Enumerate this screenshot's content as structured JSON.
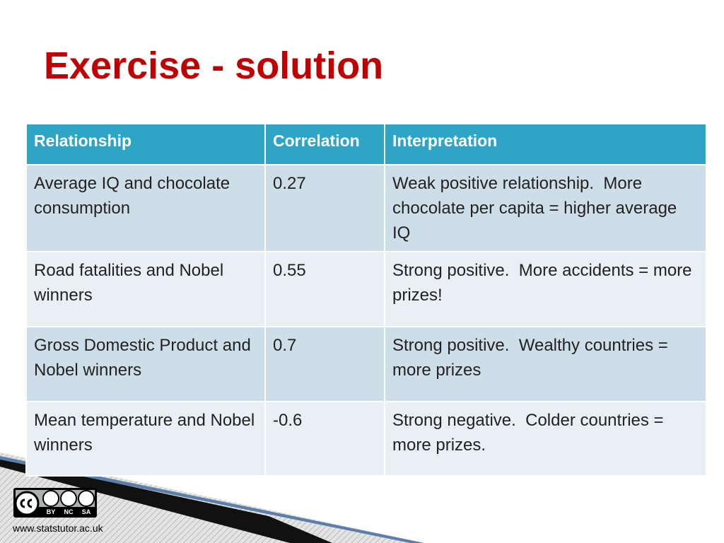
{
  "header": {
    "title": "Exercise - solution"
  },
  "table": {
    "columns": [
      "Relationship",
      "Correlation",
      "Interpretation"
    ],
    "rows": [
      [
        "Average IQ and chocolate consumption",
        0.27,
        "Weak positive relationship.  More chocolate per capita = higher average IQ"
      ],
      [
        "Road fatalities and Nobel winners",
        0.55,
        "Strong positive.  More accidents = more prizes!"
      ],
      [
        "Gross Domestic Product and Nobel winners",
        0.7,
        "Strong positive.  Wealthy countries = more prizes"
      ],
      [
        "Mean temperature and Nobel winners",
        -0.6,
        "Strong negative.  Colder countries = more prizes."
      ]
    ]
  },
  "footer": {
    "license": [
      "BY",
      "NC",
      "SA"
    ],
    "url": "www.statstutor.ac.uk"
  }
}
